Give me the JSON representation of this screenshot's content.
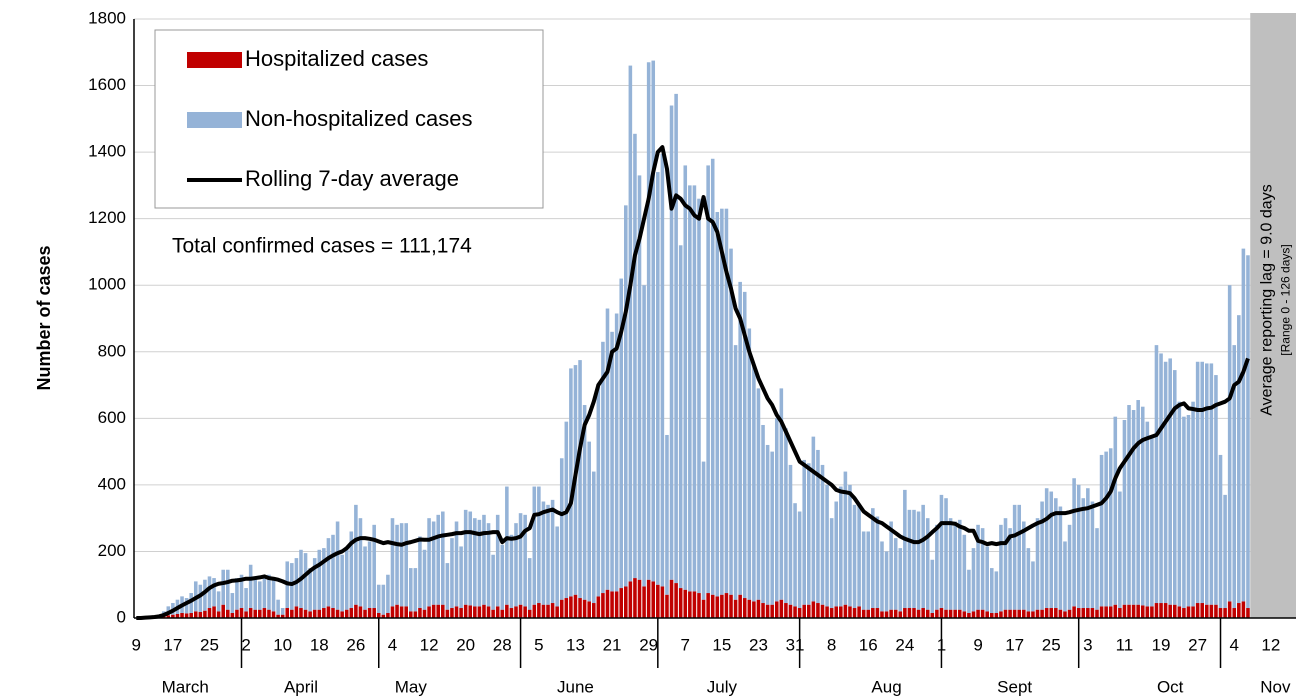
{
  "chart_data": {
    "type": "bar",
    "stacked": true,
    "y_label": "Number of cases",
    "annotations": [
      "Total confirmed cases = 111,174",
      "Average reporting lag = 9.0 days",
      "[Range 0 - 126 days]"
    ],
    "months": [
      "March",
      "April",
      "May",
      "June",
      "July",
      "Aug",
      "Sept",
      "Oct",
      "Nov"
    ],
    "ylim": [
      0,
      1800
    ],
    "yticks": [
      0,
      200,
      400,
      600,
      800,
      1000,
      1200,
      1400,
      1600,
      1800
    ],
    "grid": true,
    "legend": "top-left",
    "categories": [
      "9",
      null,
      null,
      null,
      null,
      null,
      null,
      null,
      "17",
      null,
      null,
      null,
      null,
      null,
      null,
      null,
      "25",
      null,
      null,
      null,
      null,
      null,
      null,
      null,
      "2",
      null,
      null,
      null,
      null,
      null,
      null,
      null,
      "10",
      null,
      null,
      null,
      null,
      null,
      null,
      null,
      "18",
      null,
      null,
      null,
      null,
      null,
      null,
      null,
      "26",
      null,
      null,
      null,
      null,
      null,
      null,
      null,
      "4",
      null,
      null,
      null,
      null,
      null,
      null,
      null,
      "12",
      null,
      null,
      null,
      null,
      null,
      null,
      null,
      "20",
      null,
      null,
      null,
      null,
      null,
      null,
      null,
      "28",
      null,
      null,
      null,
      null,
      null,
      null,
      null,
      "5",
      null,
      null,
      null,
      null,
      null,
      null,
      null,
      "13",
      null,
      null,
      null,
      null,
      null,
      null,
      null,
      "21",
      null,
      null,
      null,
      null,
      null,
      null,
      null,
      "29",
      null,
      null,
      null,
      null,
      null,
      null,
      null,
      "7",
      null,
      null,
      null,
      null,
      null,
      null,
      null,
      "15",
      null,
      null,
      null,
      null,
      null,
      null,
      null,
      "23",
      null,
      null,
      null,
      null,
      null,
      null,
      null,
      "31",
      null,
      null,
      null,
      null,
      null,
      null,
      null,
      "8",
      null,
      null,
      null,
      null,
      null,
      null,
      null,
      "16",
      null,
      null,
      null,
      null,
      null,
      null,
      null,
      "24",
      null,
      null,
      null,
      null,
      null,
      null,
      null,
      "1",
      null,
      null,
      null,
      null,
      null,
      null,
      null,
      "9",
      null,
      null,
      null,
      null,
      null,
      null,
      null,
      "17",
      null,
      null,
      null,
      null,
      null,
      null,
      null,
      "25",
      null,
      null,
      null,
      null,
      null,
      null,
      null,
      "3",
      null,
      null,
      null,
      null,
      null,
      null,
      null,
      "11",
      null,
      null,
      null,
      null,
      null,
      null,
      null,
      "19",
      null,
      null,
      null,
      null,
      null,
      null,
      null,
      "27",
      null,
      null,
      null,
      null,
      null,
      null,
      null,
      "4",
      null,
      null,
      null,
      null,
      null,
      null,
      null,
      "12",
      null,
      null,
      null,
      null,
      null
    ],
    "series": [
      {
        "name": "Hospitalized cases",
        "color": "#c00000",
        "values": [
          0,
          0,
          1,
          1,
          2,
          3,
          5,
          8,
          10,
          12,
          15,
          14,
          15,
          20,
          18,
          22,
          30,
          35,
          20,
          40,
          25,
          15,
          25,
          30,
          20,
          30,
          25,
          25,
          30,
          25,
          20,
          10,
          10,
          30,
          25,
          35,
          30,
          25,
          20,
          25,
          25,
          30,
          35,
          30,
          25,
          20,
          25,
          30,
          40,
          35,
          25,
          30,
          30,
          15,
          10,
          15,
          35,
          40,
          35,
          35,
          20,
          20,
          30,
          25,
          35,
          40,
          40,
          40,
          25,
          30,
          35,
          30,
          40,
          38,
          35,
          35,
          40,
          35,
          25,
          35,
          25,
          40,
          30,
          35,
          40,
          35,
          25,
          40,
          45,
          40,
          40,
          45,
          35,
          55,
          60,
          65,
          70,
          60,
          55,
          50,
          45,
          65,
          75,
          85,
          80,
          80,
          90,
          95,
          110,
          120,
          115,
          95,
          115,
          110,
          100,
          95,
          70,
          115,
          105,
          90,
          85,
          80,
          80,
          75,
          55,
          75,
          70,
          65,
          70,
          75,
          70,
          55,
          70,
          60,
          55,
          50,
          55,
          45,
          40,
          40,
          50,
          55,
          45,
          40,
          35,
          30,
          40,
          40,
          50,
          45,
          40,
          35,
          30,
          35,
          35,
          40,
          35,
          30,
          35,
          25,
          25,
          30,
          30,
          20,
          20,
          25,
          25,
          20,
          30,
          30,
          30,
          25,
          30,
          25,
          15,
          25,
          30,
          25,
          25,
          25,
          25,
          20,
          15,
          20,
          25,
          25,
          20,
          15,
          15,
          20,
          25,
          25,
          25,
          25,
          25,
          20,
          20,
          25,
          25,
          30,
          30,
          30,
          25,
          20,
          25,
          35,
          30,
          30,
          30,
          30,
          25,
          35,
          35,
          35,
          40,
          30,
          40,
          40,
          40,
          40,
          38,
          35,
          35,
          45,
          45,
          45,
          40,
          40,
          35,
          30,
          35,
          35,
          45,
          45,
          40,
          40,
          40,
          30,
          30,
          50,
          30,
          45,
          50,
          30,
          null,
          null,
          null,
          null,
          null,
          null,
          null,
          null,
          null,
          null
        ]
      },
      {
        "name": "Non-hospitalized cases",
        "color": "#95b3d7",
        "values": [
          2,
          2,
          2,
          3,
          4,
          7,
          15,
          27,
          35,
          43,
          50,
          46,
          60,
          90,
          82,
          93,
          95,
          85,
          60,
          105,
          120,
          60,
          95,
          100,
          70,
          130,
          100,
          85,
          90,
          105,
          95,
          45,
          20,
          140,
          140,
          145,
          175,
          170,
          130,
          155,
          180,
          180,
          205,
          220,
          265,
          170,
          185,
          230,
          300,
          265,
          190,
          200,
          250,
          85,
          90,
          115,
          265,
          240,
          250,
          250,
          130,
          130,
          215,
          180,
          265,
          250,
          270,
          280,
          140,
          210,
          255,
          185,
          285,
          282,
          265,
          260,
          270,
          250,
          165,
          275,
          195,
          355,
          220,
          250,
          275,
          275,
          155,
          355,
          350,
          310,
          300,
          310,
          240,
          425,
          530,
          685,
          690,
          715,
          585,
          480,
          395,
          630,
          755,
          845,
          780,
          835,
          930,
          1145,
          1550,
          1335,
          1215,
          905,
          1555,
          1565,
          1240,
          1300,
          480,
          1425,
          1470,
          1030,
          1275,
          1220,
          1220,
          1185,
          415,
          1285,
          1310,
          1155,
          1160,
          1155,
          1040,
          765,
          940,
          920,
          815,
          710,
          635,
          535,
          480,
          460,
          550,
          635,
          525,
          420,
          310,
          290,
          435,
          425,
          495,
          460,
          420,
          365,
          270,
          315,
          360,
          400,
          365,
          310,
          305,
          235,
          235,
          300,
          275,
          210,
          180,
          265,
          215,
          190,
          355,
          295,
          295,
          295,
          310,
          275,
          160,
          255,
          340,
          335,
          275,
          265,
          270,
          230,
          130,
          190,
          255,
          245,
          195,
          135,
          125,
          260,
          275,
          245,
          315,
          315,
          265,
          190,
          150,
          275,
          325,
          360,
          350,
          330,
          310,
          210,
          255,
          385,
          370,
          330,
          360,
          320,
          245,
          455,
          465,
          475,
          565,
          350,
          555,
          600,
          585,
          615,
          597,
          555,
          510,
          775,
          750,
          725,
          740,
          705,
          615,
          575,
          575,
          615,
          725,
          725,
          725,
          725,
          690,
          460,
          340,
          950,
          790,
          865,
          1060,
          1060,
          null,
          null,
          null,
          null,
          null,
          null,
          null,
          null,
          null,
          null
        ]
      },
      {
        "name": "Rolling 7-day average",
        "color": "#000000",
        "type": "line",
        "values": [
          0,
          0,
          1,
          2,
          3,
          5,
          9,
          15,
          22,
          30,
          38,
          45,
          52,
          60,
          68,
          78,
          90,
          98,
          103,
          105,
          108,
          112,
          113,
          115,
          118,
          118,
          120,
          122,
          125,
          120,
          118,
          115,
          110,
          104,
          102,
          108,
          118,
          130,
          142,
          152,
          160,
          170,
          180,
          188,
          195,
          200,
          210,
          225,
          235,
          240,
          240,
          238,
          235,
          230,
          225,
          228,
          225,
          222,
          220,
          225,
          228,
          232,
          236,
          235,
          235,
          240,
          245,
          248,
          250,
          252,
          255,
          255,
          258,
          258,
          255,
          252,
          255,
          256,
          258,
          258,
          228,
          240,
          238,
          240,
          245,
          262,
          270,
          310,
          312,
          318,
          322,
          326,
          318,
          312,
          318,
          345,
          430,
          510,
          580,
          610,
          650,
          700,
          720,
          740,
          800,
          810,
          860,
          920,
          1000,
          1090,
          1140,
          1200,
          1260,
          1340,
          1400,
          1415,
          1350,
          1230,
          1270,
          1260,
          1240,
          1230,
          1210,
          1200,
          1265,
          1200,
          1190,
          1160,
          1100,
          1040,
          990,
          930,
          900,
          850,
          800,
          760,
          720,
          690,
          660,
          640,
          610,
          590,
          560,
          530,
          500,
          470,
          460,
          450,
          440,
          430,
          420,
          410,
          400,
          385,
          380,
          378,
          375,
          360,
          340,
          320,
          310,
          300,
          290,
          285,
          275,
          265,
          255,
          245,
          238,
          233,
          228,
          228,
          235,
          245,
          258,
          270,
          285,
          285,
          285,
          283,
          275,
          270,
          262,
          262,
          232,
          228,
          222,
          225,
          222,
          225,
          225,
          245,
          248,
          255,
          262,
          270,
          278,
          285,
          290,
          298,
          310,
          315,
          315,
          315,
          318,
          322,
          325,
          328,
          330,
          335,
          340,
          345,
          360,
          380,
          420,
          450,
          470,
          490,
          510,
          525,
          535,
          540,
          545,
          550,
          570,
          590,
          610,
          630,
          640,
          645,
          630,
          628,
          625,
          625,
          630,
          632,
          640,
          645,
          650,
          660,
          700,
          710,
          740,
          780,
          null,
          null,
          null,
          null,
          null,
          null,
          null,
          null,
          null,
          null
        ]
      }
    ]
  }
}
